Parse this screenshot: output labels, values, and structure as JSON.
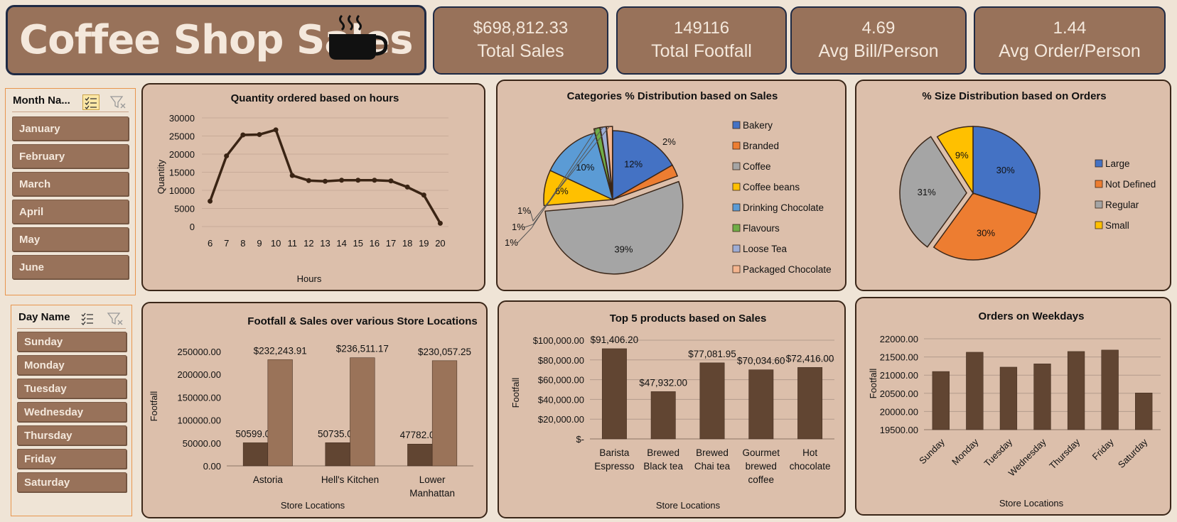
{
  "title": "Coffee Shop Sales",
  "kpis": [
    {
      "value": "$698,812.33",
      "label": "Total Sales"
    },
    {
      "value": "149116",
      "label": "Total Footfall"
    },
    {
      "value": "4.69",
      "label": "Avg Bill/Person"
    },
    {
      "value": "1.44",
      "label": "Avg Order/Person"
    }
  ],
  "slicers": {
    "month": {
      "header": "Month Na...",
      "items": [
        "January",
        "February",
        "March",
        "April",
        "May",
        "June"
      ]
    },
    "day": {
      "header": "Day Name",
      "items": [
        "Sunday",
        "Monday",
        "Tuesday",
        "Wednesday",
        "Thursday",
        "Friday",
        "Saturday"
      ]
    }
  },
  "colors": {
    "brown_dark": "#614532",
    "brown_light": "#9a7359",
    "panel": "#dcbfab"
  },
  "chart_data": [
    {
      "type": "line",
      "title": "Quantity ordered based on hours",
      "xlabel": "Hours",
      "ylabel": "Quantity",
      "x": [
        6,
        7,
        8,
        9,
        10,
        11,
        12,
        13,
        14,
        15,
        16,
        17,
        18,
        19,
        20
      ],
      "values": [
        7000,
        19500,
        25300,
        25400,
        26700,
        14100,
        12700,
        12500,
        12800,
        12800,
        12800,
        12600,
        10900,
        8700,
        900
      ],
      "ylim": [
        0,
        30000
      ],
      "yticks": [
        "0",
        "5000",
        "10000",
        "15000",
        "20000",
        "25000",
        "30000"
      ]
    },
    {
      "type": "pie",
      "title": "Categories % Distribution based on Sales",
      "categories": [
        "Bakery",
        "Branded",
        "Coffee",
        "Coffee beans",
        "Drinking Chocolate",
        "Flavours",
        "Loose Tea",
        "Packaged Chocolate"
      ],
      "values": [
        12,
        2,
        39,
        6,
        10,
        1,
        1,
        1
      ],
      "labels": [
        "12%",
        "2%",
        "39%",
        "6%",
        "10%",
        "1%",
        "1%",
        "1%"
      ],
      "colors": [
        "#4472c4",
        "#ed7d31",
        "#a5a5a5",
        "#ffc000",
        "#5b9bd5",
        "#70ad47",
        "#9dacd4",
        "#f4b58f"
      ],
      "legend": "right"
    },
    {
      "type": "pie",
      "title": "% Size Distribution based on Orders",
      "categories": [
        "Large",
        "Not Defined",
        "Regular",
        "Small"
      ],
      "values": [
        30,
        30,
        31,
        9
      ],
      "labels": [
        "30%",
        "30%",
        "31%",
        "9%"
      ],
      "colors": [
        "#4472c4",
        "#ed7d31",
        "#a5a5a5",
        "#ffc000"
      ],
      "legend": "right"
    },
    {
      "type": "bar",
      "title": "Footfall & Sales over various Store Locations",
      "xlabel": "Store Locations",
      "ylabel": "Footfall",
      "categories": [
        "Astoria",
        "Hell's Kitchen",
        "Lower Manhattan"
      ],
      "series": [
        {
          "values": [
            50599,
            50735,
            47782
          ],
          "labels": [
            "50599.00",
            "50735.00",
            "47782.00"
          ]
        },
        {
          "values": [
            232243.91,
            236511.17,
            230057.25
          ],
          "labels": [
            "$232,243.91",
            "$236,511.17",
            "$230,057.25"
          ]
        }
      ],
      "ylim": [
        0,
        250000
      ],
      "yticks": [
        "0.00",
        "50000.00",
        "100000.00",
        "150000.00",
        "200000.00",
        "250000.00"
      ]
    },
    {
      "type": "bar",
      "title": "Top 5 products based on Sales",
      "xlabel": "Store Locations",
      "ylabel": "Footfall",
      "categories": [
        "Barista Espresso",
        "Brewed Black tea",
        "Brewed Chai tea",
        "Gourmet brewed coffee",
        "Hot chocolate"
      ],
      "values": [
        91406.2,
        47932,
        77081.95,
        70034.6,
        72416
      ],
      "labels": [
        "$91,406.20",
        "$47,932.00",
        "$77,081.95",
        "$70,034.60",
        "$72,416.00"
      ],
      "ylim": [
        0,
        100000
      ],
      "yticks": [
        "$-",
        "$20,000.00",
        "$40,000.00",
        "$60,000.00",
        "$80,000.00",
        "$100,000.00"
      ]
    },
    {
      "type": "bar",
      "title": "Orders on Weekdays",
      "xlabel": "Store Locations",
      "ylabel": "Footfall",
      "categories": [
        "Sunday",
        "Monday",
        "Tuesday",
        "Wednesday",
        "Thursday",
        "Friday",
        "Saturday"
      ],
      "values": [
        21100,
        21630,
        21220,
        21310,
        21650,
        21690,
        20510
      ],
      "ylim": [
        19500,
        22000
      ],
      "yticks": [
        "19500.00",
        "20000.00",
        "20500.00",
        "21000.00",
        "21500.00",
        "22000.00"
      ]
    }
  ]
}
